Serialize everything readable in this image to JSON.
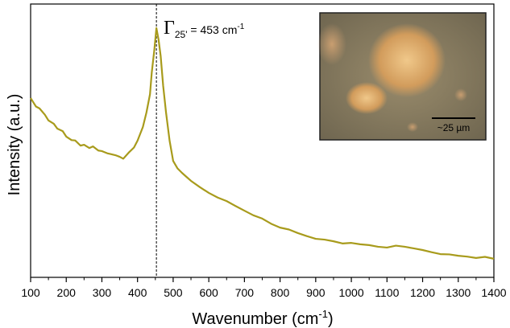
{
  "chart_data": {
    "type": "line",
    "x_label": {
      "text": "Wavenumber (cm",
      "superscript": "-1",
      "close": ")"
    },
    "y_label": "Intensity (a.u.)",
    "x": [
      100,
      115,
      125,
      140,
      150,
      165,
      175,
      190,
      200,
      215,
      225,
      240,
      250,
      265,
      275,
      290,
      300,
      315,
      325,
      340,
      350,
      360,
      375,
      390,
      400,
      415,
      425,
      435,
      440,
      447,
      453,
      459,
      465,
      472,
      480,
      490,
      500,
      512,
      525,
      537,
      550,
      575,
      600,
      625,
      650,
      675,
      700,
      725,
      750,
      775,
      800,
      825,
      850,
      875,
      900,
      925,
      950,
      975,
      1000,
      1025,
      1050,
      1075,
      1100,
      1125,
      1150,
      1175,
      1200,
      1225,
      1250,
      1275,
      1300,
      1325,
      1350,
      1375,
      1400
    ],
    "values": [
      65.6,
      62.5,
      61.8,
      59.5,
      57.4,
      56.2,
      54.4,
      53.5,
      51.5,
      50.2,
      50.1,
      48.2,
      48.5,
      47.3,
      47.9,
      46.4,
      46.2,
      45.4,
      45.1,
      44.6,
      44.1,
      43.4,
      45.6,
      47.5,
      50,
      55,
      60.3,
      67,
      75,
      83,
      91.2,
      87,
      80.9,
      70,
      60.3,
      50,
      42.6,
      39.9,
      38.2,
      36.8,
      35.3,
      33,
      30.9,
      29.2,
      27.9,
      26.1,
      24.4,
      22.7,
      21.5,
      19.6,
      18.2,
      17.5,
      16.2,
      15.1,
      14.1,
      13.8,
      13.2,
      12.4,
      12.6,
      12.1,
      11.8,
      11.2,
      10.9,
      11.6,
      11.2,
      10.6,
      10,
      9.2,
      8.5,
      8.4,
      7.9,
      7.6,
      7.1,
      7.5,
      6.8
    ],
    "color": "#a89b1c",
    "xlim": [
      100,
      1400
    ],
    "ylim": [
      0,
      100
    ],
    "xticks": [
      100,
      200,
      300,
      400,
      500,
      600,
      700,
      800,
      900,
      1000,
      1100,
      1200,
      1300,
      1400
    ],
    "xminor_ticks": [
      150,
      250,
      350,
      450,
      550,
      650,
      750,
      850,
      950,
      1050,
      1150,
      1250,
      1350
    ],
    "peak_line_x": 453,
    "annotation": {
      "symbol": "Γ",
      "subscript": "25'",
      "text": " = 453 cm",
      "superscript": "-1"
    },
    "inset": {
      "scale_label": "~25 µm"
    }
  }
}
